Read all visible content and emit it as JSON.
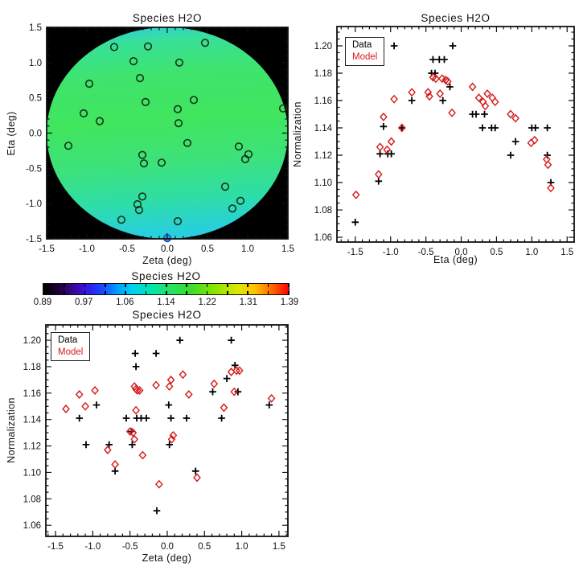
{
  "page": {
    "background": "#ffffff"
  },
  "chart_data": [
    {
      "id": "map",
      "type": "heatmap",
      "title": "Species H2O",
      "xlabel": "Zeta (deg)",
      "ylabel": "Eta (deg)",
      "xlim": [
        -1.5,
        1.5
      ],
      "ylim": [
        -1.5,
        1.5
      ],
      "xtick_labels": [
        "-1.5",
        "-1.0",
        "-0.5",
        "0.0",
        "0.5",
        "1.0",
        "1.5"
      ],
      "ytick_labels": [
        "1.5",
        "1.0",
        "0.5",
        "0.0",
        "-0.5",
        "-1.0",
        "-1.5"
      ],
      "background_color": "#000000",
      "disk_gradient": [
        {
          "pos": 0,
          "color": "#2bcdea"
        },
        {
          "pos": 10,
          "color": "#38e099"
        },
        {
          "pos": 26,
          "color": "#3ee46c"
        },
        {
          "pos": 48,
          "color": "#41e55e"
        },
        {
          "pos": 68,
          "color": "#3ce27b"
        },
        {
          "pos": 86,
          "color": "#2eddaa"
        },
        {
          "pos": 100,
          "color": "#28cfdc"
        }
      ],
      "marker": "open-circle",
      "marker_color": "#173317",
      "pointings": [
        [
          -0.66,
          1.22
        ],
        [
          -0.24,
          1.23
        ],
        [
          0.47,
          1.28
        ],
        [
          -0.42,
          1.02
        ],
        [
          0.15,
          1.0
        ],
        [
          -0.34,
          0.78
        ],
        [
          -0.97,
          0.7
        ],
        [
          -0.27,
          0.44
        ],
        [
          0.33,
          0.47
        ],
        [
          0.13,
          0.34
        ],
        [
          -1.04,
          0.28
        ],
        [
          -0.84,
          0.17
        ],
        [
          0.14,
          0.14
        ],
        [
          1.44,
          0.35
        ],
        [
          -1.23,
          -0.18
        ],
        [
          0.25,
          -0.14
        ],
        [
          0.89,
          -0.19
        ],
        [
          1.01,
          -0.3
        ],
        [
          0.97,
          -0.37
        ],
        [
          -0.31,
          -0.31
        ],
        [
          -0.29,
          -0.43
        ],
        [
          -0.07,
          -0.42
        ],
        [
          0.72,
          -0.76
        ],
        [
          -0.31,
          -0.9
        ],
        [
          -0.37,
          -1.01
        ],
        [
          -0.35,
          -1.09
        ],
        [
          0.91,
          -0.96
        ],
        [
          0.81,
          -1.07
        ],
        [
          -0.57,
          -1.23
        ],
        [
          0.13,
          -1.25
        ]
      ],
      "highlight_pointing": {
        "zeta": 0.0,
        "eta": -1.49,
        "fill": "#2f9ce8",
        "stroke": "#1d50c0"
      }
    },
    {
      "id": "eta_scatter",
      "type": "scatter",
      "title": "Species H2O",
      "xlabel": "Eta (deg)",
      "ylabel": "Normalization",
      "xtick_labels": [
        "-1.5",
        "-1.0",
        "-0.5",
        "0.0",
        "0.5",
        "1.0",
        "1.5"
      ],
      "ytick_labels": [
        "1.06",
        "1.08",
        "1.10",
        "1.12",
        "1.14",
        "1.16",
        "1.18",
        "1.20"
      ],
      "legend": {
        "position": "top-left"
      },
      "series": [
        {
          "name": "Data",
          "marker": "plus",
          "color": "#000000",
          "points": [
            [
              -1.5,
              1.071
            ],
            [
              -1.17,
              1.101
            ],
            [
              -1.15,
              1.121
            ],
            [
              -1.04,
              1.121
            ],
            [
              -0.99,
              1.121
            ],
            [
              -1.1,
              1.141
            ],
            [
              -0.95,
              1.2
            ],
            [
              -0.84,
              1.14
            ],
            [
              -0.7,
              1.16
            ],
            [
              -0.42,
              1.18
            ],
            [
              -0.37,
              1.18
            ],
            [
              -0.4,
              1.19
            ],
            [
              -0.31,
              1.19
            ],
            [
              -0.24,
              1.19
            ],
            [
              -0.26,
              1.16
            ],
            [
              -0.16,
              1.17
            ],
            [
              -0.12,
              1.2
            ],
            [
              0.16,
              1.15
            ],
            [
              0.21,
              1.15
            ],
            [
              0.33,
              1.15
            ],
            [
              0.3,
              1.14
            ],
            [
              0.43,
              1.14
            ],
            [
              0.48,
              1.14
            ],
            [
              0.7,
              1.12
            ],
            [
              0.77,
              1.13
            ],
            [
              1.0,
              1.14
            ],
            [
              1.05,
              1.14
            ],
            [
              1.22,
              1.14
            ],
            [
              1.22,
              1.12
            ],
            [
              1.27,
              1.1
            ]
          ]
        },
        {
          "name": "Model",
          "marker": "diamond",
          "color": "#d61a1a",
          "points": [
            [
              -1.49,
              1.091
            ],
            [
              -1.17,
              1.106
            ],
            [
              -1.15,
              1.126
            ],
            [
              -1.05,
              1.124
            ],
            [
              -0.99,
              1.13
            ],
            [
              -1.1,
              1.148
            ],
            [
              -0.95,
              1.161
            ],
            [
              -0.84,
              1.14
            ],
            [
              -0.7,
              1.166
            ],
            [
              -0.47,
              1.166
            ],
            [
              -0.45,
              1.163
            ],
            [
              -0.4,
              1.177
            ],
            [
              -0.36,
              1.176
            ],
            [
              -0.3,
              1.165
            ],
            [
              -0.27,
              1.176
            ],
            [
              -0.22,
              1.175
            ],
            [
              -0.19,
              1.174
            ],
            [
              -0.13,
              1.151
            ],
            [
              0.16,
              1.17
            ],
            [
              0.25,
              1.162
            ],
            [
              0.31,
              1.159
            ],
            [
              0.34,
              1.156
            ],
            [
              0.37,
              1.165
            ],
            [
              0.44,
              1.162
            ],
            [
              0.48,
              1.159
            ],
            [
              0.7,
              1.15
            ],
            [
              0.77,
              1.147
            ],
            [
              0.99,
              1.129
            ],
            [
              1.04,
              1.131
            ],
            [
              1.21,
              1.117
            ],
            [
              1.23,
              1.113
            ],
            [
              1.27,
              1.096
            ]
          ]
        }
      ]
    },
    {
      "id": "colorbar",
      "type": "colorbar",
      "title": "Species H2O",
      "tick_labels": [
        "0.89",
        "0.97",
        "1.06",
        "1.14",
        "1.22",
        "1.31",
        "1.39"
      ],
      "gradient": [
        {
          "pos": 0,
          "color": "#000000"
        },
        {
          "pos": 6,
          "color": "#1c0230"
        },
        {
          "pos": 12,
          "color": "#3c0694"
        },
        {
          "pos": 18,
          "color": "#3418e8"
        },
        {
          "pos": 24,
          "color": "#1848ff"
        },
        {
          "pos": 30,
          "color": "#009cff"
        },
        {
          "pos": 36,
          "color": "#00d2f0"
        },
        {
          "pos": 43,
          "color": "#00e4b4"
        },
        {
          "pos": 51,
          "color": "#22e36a"
        },
        {
          "pos": 60,
          "color": "#3cdc2e"
        },
        {
          "pos": 70,
          "color": "#8ce400"
        },
        {
          "pos": 79,
          "color": "#dce800"
        },
        {
          "pos": 86,
          "color": "#ffc400"
        },
        {
          "pos": 93,
          "color": "#ff6a00"
        },
        {
          "pos": 100,
          "color": "#fb0000"
        }
      ]
    },
    {
      "id": "zeta_scatter",
      "type": "scatter",
      "title": "Species H2O",
      "xlabel": "Zeta (deg)",
      "ylabel": "Normalization",
      "xtick_labels": [
        "-1.5",
        "-1.0",
        "-0.5",
        "0.0",
        "0.5",
        "1.0",
        "1.5"
      ],
      "ytick_labels": [
        "1.06",
        "1.08",
        "1.10",
        "1.12",
        "1.14",
        "1.16",
        "1.18",
        "1.20"
      ],
      "legend": {
        "position": "top-left"
      },
      "series": [
        {
          "name": "Data",
          "marker": "plus",
          "color": "#000000",
          "points": [
            [
              -1.36,
              1.19
            ],
            [
              -0.43,
              1.19
            ],
            [
              -0.15,
              1.19
            ],
            [
              0.17,
              1.2
            ],
            [
              0.86,
              1.2
            ],
            [
              -0.42,
              1.18
            ],
            [
              0.91,
              1.181
            ],
            [
              0.8,
              1.171
            ],
            [
              0.61,
              1.161
            ],
            [
              0.95,
              1.161
            ],
            [
              -0.95,
              1.151
            ],
            [
              0.02,
              1.151
            ],
            [
              1.37,
              1.151
            ],
            [
              -1.18,
              1.141
            ],
            [
              -0.55,
              1.141
            ],
            [
              -0.41,
              1.141
            ],
            [
              -0.35,
              1.141
            ],
            [
              -0.28,
              1.141
            ],
            [
              0.05,
              1.141
            ],
            [
              0.26,
              1.141
            ],
            [
              0.73,
              1.141
            ],
            [
              -0.48,
              1.131
            ],
            [
              -1.09,
              1.121
            ],
            [
              -0.78,
              1.121
            ],
            [
              -0.47,
              1.121
            ],
            [
              0.03,
              1.121
            ],
            [
              -0.7,
              1.101
            ],
            [
              0.38,
              1.101
            ],
            [
              -0.14,
              1.071
            ]
          ]
        },
        {
          "name": "Model",
          "marker": "diamond",
          "color": "#d61a1a",
          "points": [
            [
              -1.36,
              1.148
            ],
            [
              -1.18,
              1.159
            ],
            [
              -1.1,
              1.15
            ],
            [
              -0.97,
              1.162
            ],
            [
              -0.8,
              1.117
            ],
            [
              -0.7,
              1.106
            ],
            [
              -0.5,
              1.131
            ],
            [
              -0.46,
              1.13
            ],
            [
              -0.44,
              1.125
            ],
            [
              -0.42,
              1.147
            ],
            [
              -0.44,
              1.165
            ],
            [
              -0.42,
              1.163
            ],
            [
              -0.4,
              1.162
            ],
            [
              -0.37,
              1.162
            ],
            [
              -0.33,
              1.113
            ],
            [
              -0.15,
              1.166
            ],
            [
              -0.11,
              1.091
            ],
            [
              0.03,
              1.165
            ],
            [
              0.05,
              1.17
            ],
            [
              0.06,
              1.125
            ],
            [
              0.08,
              1.128
            ],
            [
              0.21,
              1.174
            ],
            [
              0.29,
              1.159
            ],
            [
              0.4,
              1.096
            ],
            [
              0.63,
              1.167
            ],
            [
              0.76,
              1.149
            ],
            [
              0.86,
              1.176
            ],
            [
              0.93,
              1.177
            ],
            [
              0.97,
              1.177
            ],
            [
              0.9,
              1.161
            ],
            [
              1.4,
              1.156
            ]
          ]
        }
      ]
    }
  ]
}
